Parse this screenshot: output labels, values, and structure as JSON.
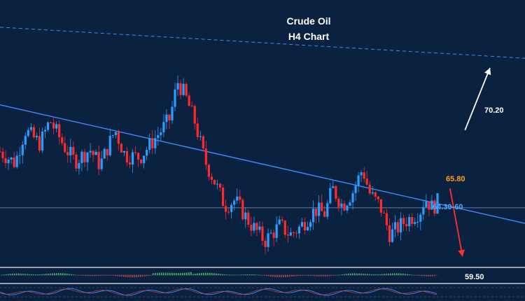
{
  "chart_data": {
    "type": "candlestick",
    "title": "Crude Oil",
    "subtitle": "H4 Chart",
    "ylim": [
      57.5,
      73.0
    ],
    "candles_count": 155,
    "close_path": [
      [
        0,
        65.2
      ],
      [
        6,
        64.6
      ],
      [
        10,
        66.3
      ],
      [
        16,
        65.6
      ],
      [
        20,
        66.8
      ],
      [
        26,
        65.4
      ],
      [
        30,
        64.7
      ],
      [
        36,
        65.3
      ],
      [
        40,
        64.5
      ],
      [
        46,
        66.3
      ],
      [
        50,
        65.0
      ],
      [
        56,
        64.9
      ],
      [
        64,
        66.2
      ],
      [
        68,
        66.9
      ],
      [
        71,
        68.8
      ],
      [
        74,
        68.1
      ],
      [
        78,
        66.7
      ],
      [
        82,
        64.7
      ],
      [
        86,
        63.6
      ],
      [
        90,
        62.4
      ],
      [
        94,
        62.7
      ],
      [
        100,
        61.5
      ],
      [
        106,
        60.6
      ],
      [
        112,
        61.4
      ],
      [
        116,
        60.9
      ],
      [
        120,
        61.3
      ],
      [
        126,
        62.2
      ],
      [
        130,
        62.0
      ],
      [
        133,
        63.3
      ],
      [
        137,
        62.4
      ],
      [
        141,
        63.1
      ],
      [
        145,
        64.3
      ],
      [
        148,
        63.0
      ],
      [
        152,
        62.4
      ],
      [
        156,
        60.9
      ],
      [
        162,
        61.6
      ],
      [
        168,
        62.1
      ],
      [
        170,
        62.8
      ],
      [
        173,
        62.3
      ],
      [
        175,
        62.6
      ]
    ],
    "levels": [
      {
        "label": "70.20",
        "value": 70.2,
        "color": "#ffffff"
      },
      {
        "label": "65.80",
        "value": 65.8,
        "color": "#ff9f1c"
      },
      {
        "label": "64.30-60",
        "value": 64.3,
        "color": "#4ea8ff"
      },
      {
        "label": "59.50",
        "value": 59.5,
        "color": "#ffffff"
      }
    ],
    "trendlines": [
      {
        "style": "solid",
        "from": [
          0,
          67.6
        ],
        "to": [
          210,
          61.5
        ],
        "color": "#3d8bff"
      },
      {
        "style": "dashed",
        "from": [
          0,
          71.6
        ],
        "to": [
          210,
          70.0
        ],
        "color": "#3d8bff"
      }
    ],
    "horizontal_line": {
      "value": 62.3,
      "color": "#8a9bb4"
    },
    "arrows": [
      {
        "direction": "up",
        "from": [
          186,
          66.3
        ],
        "to": [
          196,
          69.5
        ],
        "color": "#ffffff"
      },
      {
        "direction": "down",
        "from": [
          180,
          63.3
        ],
        "to": [
          185,
          59.8
        ],
        "color": "#ff3030"
      }
    ],
    "up_color": "#2a9dff",
    "down_color": "#ff2a2a"
  }
}
